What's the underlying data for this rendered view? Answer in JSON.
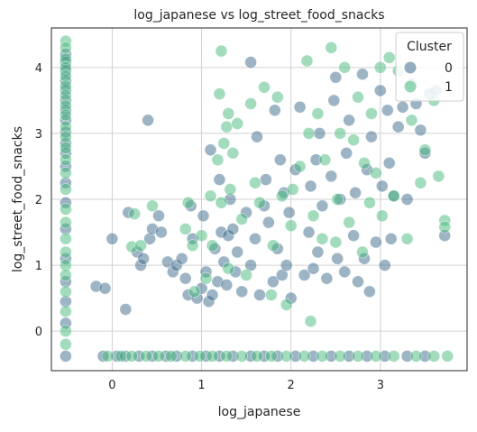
{
  "chart_data": {
    "type": "scatter",
    "title": "log_japanese vs log_street_food_snacks",
    "xlabel": "log_japanese",
    "ylabel": "log_street_food_snacks",
    "xlim": [
      -0.68,
      3.97
    ],
    "ylim": [
      -0.6,
      4.6
    ],
    "xticks": [
      0,
      1,
      2,
      3
    ],
    "yticks": [
      0,
      1,
      2,
      3,
      4
    ],
    "grid": true,
    "legend": {
      "title": "Cluster",
      "position": "top-right",
      "entries": [
        {
          "label": "0",
          "color": "#3b6a8c"
        },
        {
          "label": "1",
          "color": "#45b97c"
        }
      ]
    },
    "series": [
      {
        "color": "#3b6a8c",
        "points": [
          [
            -0.52,
            4.2
          ],
          [
            -0.52,
            4.08
          ],
          [
            -0.52,
            3.95
          ],
          [
            -0.52,
            3.8
          ],
          [
            -0.52,
            3.66
          ],
          [
            -0.52,
            3.5
          ],
          [
            -0.52,
            3.35
          ],
          [
            -0.52,
            3.2
          ],
          [
            -0.52,
            3.02
          ],
          [
            -0.52,
            2.85
          ],
          [
            -0.52,
            2.7
          ],
          [
            -0.52,
            2.5
          ],
          [
            -0.52,
            2.25
          ],
          [
            -0.52,
            1.95
          ],
          [
            -0.52,
            1.55
          ],
          [
            -0.52,
            1.1
          ],
          [
            -0.52,
            0.75
          ],
          [
            -0.52,
            0.45
          ],
          [
            -0.52,
            0.12
          ],
          [
            -0.52,
            -0.38
          ],
          [
            -0.18,
            0.68
          ],
          [
            -0.08,
            0.65
          ],
          [
            0.0,
            1.4
          ],
          [
            0.15,
            0.33
          ],
          [
            0.18,
            1.8
          ],
          [
            0.28,
            1.2
          ],
          [
            0.32,
            1.0
          ],
          [
            0.35,
            1.1
          ],
          [
            0.4,
            3.2
          ],
          [
            0.42,
            1.4
          ],
          [
            0.45,
            1.55
          ],
          [
            0.52,
            1.75
          ],
          [
            0.55,
            1.5
          ],
          [
            0.62,
            1.05
          ],
          [
            0.68,
            0.9
          ],
          [
            0.72,
            1.0
          ],
          [
            0.78,
            1.1
          ],
          [
            0.82,
            0.8
          ],
          [
            0.85,
            0.55
          ],
          [
            0.88,
            1.9
          ],
          [
            0.9,
            1.4
          ],
          [
            0.95,
            0.5
          ],
          [
            1.0,
            0.65
          ],
          [
            1.02,
            1.75
          ],
          [
            1.05,
            0.9
          ],
          [
            1.08,
            0.45
          ],
          [
            1.1,
            2.75
          ],
          [
            1.12,
            0.55
          ],
          [
            1.15,
            1.25
          ],
          [
            1.18,
            0.75
          ],
          [
            1.2,
            2.3
          ],
          [
            1.22,
            1.5
          ],
          [
            1.25,
            1.05
          ],
          [
            1.28,
            0.7
          ],
          [
            1.3,
            1.45
          ],
          [
            1.32,
            2.0
          ],
          [
            1.35,
            1.55
          ],
          [
            1.38,
            0.9
          ],
          [
            1.4,
            1.2
          ],
          [
            1.45,
            0.6
          ],
          [
            1.5,
            1.8
          ],
          [
            1.55,
            4.08
          ],
          [
            1.55,
            1.0
          ],
          [
            1.6,
            1.4
          ],
          [
            1.62,
            2.95
          ],
          [
            1.65,
            0.55
          ],
          [
            1.7,
            1.9
          ],
          [
            1.72,
            2.3
          ],
          [
            1.75,
            1.65
          ],
          [
            1.8,
            0.75
          ],
          [
            1.82,
            3.35
          ],
          [
            1.85,
            1.25
          ],
          [
            1.88,
            2.6
          ],
          [
            1.9,
            0.85
          ],
          [
            1.92,
            2.1
          ],
          [
            1.95,
            1.0
          ],
          [
            1.98,
            1.8
          ],
          [
            2.0,
            0.5
          ],
          [
            2.05,
            2.45
          ],
          [
            2.1,
            3.4
          ],
          [
            2.15,
            0.85
          ],
          [
            2.2,
            1.5
          ],
          [
            2.22,
            2.2
          ],
          [
            2.25,
            0.95
          ],
          [
            2.28,
            2.6
          ],
          [
            2.3,
            1.2
          ],
          [
            2.32,
            3.0
          ],
          [
            2.35,
            1.9
          ],
          [
            2.4,
            0.8
          ],
          [
            2.45,
            2.35
          ],
          [
            2.48,
            3.5
          ],
          [
            2.5,
            3.85
          ],
          [
            2.52,
            1.1
          ],
          [
            2.55,
            2.0
          ],
          [
            2.6,
            0.9
          ],
          [
            2.62,
            2.7
          ],
          [
            2.65,
            3.2
          ],
          [
            2.7,
            1.45
          ],
          [
            2.72,
            2.1
          ],
          [
            2.75,
            0.75
          ],
          [
            2.8,
            3.9
          ],
          [
            2.82,
            1.1
          ],
          [
            2.85,
            2.45
          ],
          [
            2.88,
            0.6
          ],
          [
            2.9,
            2.95
          ],
          [
            2.95,
            1.35
          ],
          [
            3.0,
            3.65
          ],
          [
            3.02,
            2.2
          ],
          [
            3.05,
            1.0
          ],
          [
            3.08,
            3.35
          ],
          [
            3.1,
            2.55
          ],
          [
            3.12,
            1.4
          ],
          [
            3.15,
            2.05
          ],
          [
            3.2,
            3.1
          ],
          [
            3.25,
            3.4
          ],
          [
            3.3,
            2.0
          ],
          [
            3.35,
            3.75
          ],
          [
            3.4,
            3.45
          ],
          [
            3.45,
            3.05
          ],
          [
            3.5,
            2.7
          ],
          [
            3.55,
            3.6
          ],
          [
            3.62,
            3.65
          ],
          [
            3.72,
            1.45
          ],
          [
            -0.1,
            -0.38
          ],
          [
            0.05,
            -0.38
          ],
          [
            0.15,
            -0.38
          ],
          [
            0.3,
            -0.38
          ],
          [
            0.45,
            -0.38
          ],
          [
            0.6,
            -0.38
          ],
          [
            0.72,
            -0.38
          ],
          [
            0.9,
            -0.38
          ],
          [
            1.05,
            -0.38
          ],
          [
            1.2,
            -0.38
          ],
          [
            1.35,
            -0.38
          ],
          [
            1.55,
            -0.38
          ],
          [
            1.7,
            -0.38
          ],
          [
            1.85,
            -0.38
          ],
          [
            2.05,
            -0.38
          ],
          [
            2.25,
            -0.38
          ],
          [
            2.45,
            -0.38
          ],
          [
            2.65,
            -0.38
          ],
          [
            2.85,
            -0.38
          ],
          [
            3.05,
            -0.38
          ],
          [
            3.3,
            -0.38
          ],
          [
            3.5,
            -0.38
          ]
        ]
      },
      {
        "color": "#45b97c",
        "points": [
          [
            -0.52,
            4.4
          ],
          [
            -0.52,
            4.3
          ],
          [
            -0.52,
            4.13
          ],
          [
            -0.52,
            4.0
          ],
          [
            -0.52,
            3.87
          ],
          [
            -0.52,
            3.72
          ],
          [
            -0.52,
            3.58
          ],
          [
            -0.52,
            3.42
          ],
          [
            -0.52,
            3.28
          ],
          [
            -0.52,
            3.1
          ],
          [
            -0.52,
            2.95
          ],
          [
            -0.52,
            2.78
          ],
          [
            -0.52,
            2.6
          ],
          [
            -0.52,
            2.4
          ],
          [
            -0.52,
            2.15
          ],
          [
            -0.52,
            1.85
          ],
          [
            -0.52,
            1.65
          ],
          [
            -0.52,
            1.4
          ],
          [
            -0.52,
            1.2
          ],
          [
            -0.52,
            1.0
          ],
          [
            -0.52,
            0.85
          ],
          [
            -0.52,
            0.6
          ],
          [
            -0.52,
            0.3
          ],
          [
            -0.52,
            0.0
          ],
          [
            -0.52,
            -0.2
          ],
          [
            0.22,
            1.28
          ],
          [
            0.25,
            1.78
          ],
          [
            0.32,
            1.3
          ],
          [
            0.45,
            1.9
          ],
          [
            0.82,
            1.55
          ],
          [
            0.85,
            1.95
          ],
          [
            0.9,
            1.3
          ],
          [
            0.92,
            0.6
          ],
          [
            1.0,
            1.45
          ],
          [
            1.05,
            0.8
          ],
          [
            1.1,
            2.05
          ],
          [
            1.12,
            1.3
          ],
          [
            1.18,
            2.6
          ],
          [
            1.2,
            3.6
          ],
          [
            1.22,
            4.25
          ],
          [
            1.22,
            1.95
          ],
          [
            1.25,
            2.85
          ],
          [
            1.28,
            3.1
          ],
          [
            1.3,
            3.3
          ],
          [
            1.3,
            0.95
          ],
          [
            1.32,
            2.15
          ],
          [
            1.35,
            2.7
          ],
          [
            1.4,
            3.15
          ],
          [
            1.45,
            1.7
          ],
          [
            1.5,
            0.85
          ],
          [
            1.55,
            3.45
          ],
          [
            1.6,
            2.25
          ],
          [
            1.65,
            1.95
          ],
          [
            1.7,
            3.7
          ],
          [
            1.78,
            0.55
          ],
          [
            1.8,
            1.3
          ],
          [
            1.85,
            3.55
          ],
          [
            1.9,
            2.05
          ],
          [
            1.95,
            0.4
          ],
          [
            2.0,
            1.6
          ],
          [
            2.02,
            2.15
          ],
          [
            2.1,
            2.5
          ],
          [
            2.18,
            4.1
          ],
          [
            2.2,
            3.0
          ],
          [
            2.22,
            0.15
          ],
          [
            2.25,
            1.75
          ],
          [
            2.3,
            3.3
          ],
          [
            2.35,
            1.4
          ],
          [
            2.38,
            2.6
          ],
          [
            2.45,
            4.3
          ],
          [
            2.5,
            1.35
          ],
          [
            2.52,
            2.0
          ],
          [
            2.55,
            3.0
          ],
          [
            2.6,
            4.0
          ],
          [
            2.65,
            1.65
          ],
          [
            2.7,
            2.9
          ],
          [
            2.75,
            3.55
          ],
          [
            2.8,
            1.2
          ],
          [
            2.82,
            2.55
          ],
          [
            2.88,
            1.95
          ],
          [
            2.9,
            3.3
          ],
          [
            2.95,
            2.4
          ],
          [
            3.0,
            4.0
          ],
          [
            3.02,
            1.75
          ],
          [
            3.1,
            4.15
          ],
          [
            3.15,
            2.05
          ],
          [
            3.2,
            3.95
          ],
          [
            3.3,
            1.4
          ],
          [
            3.35,
            3.2
          ],
          [
            3.45,
            2.25
          ],
          [
            3.5,
            2.75
          ],
          [
            3.6,
            3.5
          ],
          [
            3.65,
            2.35
          ],
          [
            3.72,
            1.68
          ],
          [
            3.72,
            1.58
          ],
          [
            -0.05,
            -0.38
          ],
          [
            0.1,
            -0.38
          ],
          [
            0.22,
            -0.38
          ],
          [
            0.38,
            -0.38
          ],
          [
            0.52,
            -0.38
          ],
          [
            0.66,
            -0.38
          ],
          [
            0.82,
            -0.38
          ],
          [
            0.98,
            -0.38
          ],
          [
            1.12,
            -0.38
          ],
          [
            1.28,
            -0.38
          ],
          [
            1.45,
            -0.38
          ],
          [
            1.62,
            -0.38
          ],
          [
            1.78,
            -0.38
          ],
          [
            1.95,
            -0.38
          ],
          [
            2.15,
            -0.38
          ],
          [
            2.35,
            -0.38
          ],
          [
            2.55,
            -0.38
          ],
          [
            2.75,
            -0.38
          ],
          [
            2.95,
            -0.38
          ],
          [
            3.15,
            -0.38
          ],
          [
            3.4,
            -0.38
          ],
          [
            3.6,
            -0.38
          ],
          [
            3.75,
            -0.38
          ]
        ]
      }
    ]
  }
}
